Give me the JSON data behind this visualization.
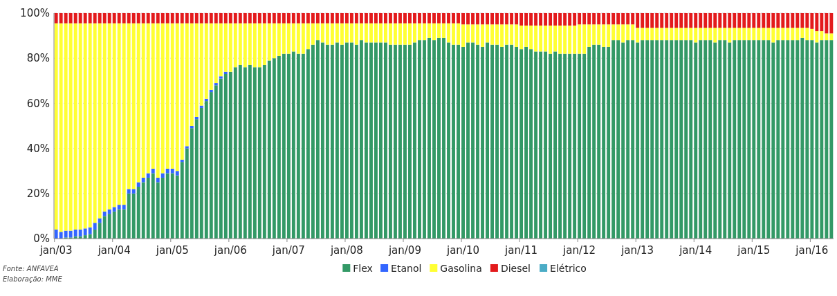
{
  "chart_data": {
    "type": "bar",
    "stacked": true,
    "categories": [
      "jan/03",
      null,
      null,
      null,
      null,
      null,
      null,
      null,
      null,
      null,
      null,
      null,
      "jan/04",
      null,
      null,
      null,
      null,
      null,
      null,
      null,
      null,
      null,
      null,
      null,
      "jan/05",
      null,
      null,
      null,
      null,
      null,
      null,
      null,
      null,
      null,
      null,
      null,
      "jan/06",
      null,
      null,
      null,
      null,
      null,
      null,
      null,
      null,
      null,
      null,
      null,
      "jan/07",
      null,
      null,
      null,
      null,
      null,
      null,
      null,
      null,
      null,
      null,
      null,
      "jan/08",
      null,
      null,
      null,
      null,
      null,
      null,
      null,
      null,
      null,
      null,
      null,
      "jan/09",
      null,
      null,
      null,
      null,
      null,
      null,
      null,
      null,
      null,
      null,
      null,
      "jan/10",
      null,
      null,
      null,
      null,
      null,
      null,
      null,
      null,
      null,
      null,
      null,
      "jan/11",
      null,
      null,
      null,
      null,
      null,
      null,
      null,
      null,
      null,
      null,
      null,
      "jan/12",
      null,
      null,
      null,
      null,
      null,
      null,
      null,
      null,
      null,
      null,
      null,
      "jan/13",
      null,
      null,
      null,
      null,
      null,
      null,
      null,
      null,
      null,
      null,
      null,
      "jan/14",
      null,
      null,
      null,
      null,
      null,
      null,
      null,
      null,
      null,
      null,
      null,
      "jan/15",
      null,
      null,
      null,
      null,
      null,
      null,
      null,
      null,
      null,
      null,
      null,
      "jan/16",
      null,
      null,
      null,
      null
    ],
    "series": [
      {
        "name": "Flex",
        "color": "#339966",
        "values": [
          0,
          0,
          0.5,
          0.5,
          1,
          1,
          1.5,
          2,
          4,
          7,
          10,
          11,
          12,
          13,
          13,
          20,
          20,
          23,
          25,
          27,
          29,
          25,
          27,
          29,
          29,
          28,
          34,
          40,
          49,
          53,
          58,
          61,
          65,
          68,
          71,
          73,
          74,
          76,
          77,
          76,
          77,
          76,
          76,
          77,
          79,
          80,
          81,
          82,
          82,
          83,
          82,
          82,
          84,
          86,
          88,
          87,
          86,
          86,
          87,
          86,
          87,
          87,
          86,
          88,
          87,
          87,
          87,
          87,
          87,
          86,
          86,
          86,
          86,
          86,
          87,
          88,
          88,
          89,
          88,
          89,
          89,
          87,
          86,
          86,
          85,
          87,
          87,
          86,
          85,
          87,
          86,
          86,
          85,
          86,
          86,
          85,
          84,
          85,
          84,
          83,
          83,
          83,
          82,
          83,
          82,
          82,
          82,
          82,
          82,
          82,
          85,
          86,
          86,
          85,
          85,
          88,
          88,
          87,
          88,
          88,
          87,
          88,
          88,
          88,
          88,
          88,
          88,
          88,
          88,
          88,
          88,
          88,
          87,
          88,
          88,
          88,
          87,
          88,
          88,
          87,
          88,
          88,
          88,
          88,
          88,
          88,
          88,
          88,
          87,
          88,
          88,
          88,
          88,
          88,
          89,
          88,
          88,
          87,
          88,
          88,
          88
        ]
      },
      {
        "name": "Etanol",
        "color": "#3366ff",
        "values": [
          4,
          3,
          3,
          3,
          3,
          3,
          3,
          3,
          3,
          2,
          2,
          2,
          2,
          2,
          2,
          2,
          2,
          2,
          2,
          2,
          2,
          2,
          2,
          2,
          2,
          2,
          1,
          1,
          1,
          1,
          1,
          1,
          1,
          1,
          1,
          1,
          0,
          0,
          0,
          0,
          0,
          0,
          0,
          0,
          0,
          0,
          0,
          0,
          0,
          0,
          0,
          0,
          0,
          0,
          0,
          0,
          0,
          0,
          0,
          0,
          0,
          0,
          0,
          0,
          0,
          0,
          0,
          0,
          0,
          0,
          0,
          0,
          0,
          0,
          0,
          0,
          0,
          0,
          0,
          0,
          0,
          0,
          0,
          0,
          0,
          0,
          0,
          0,
          0,
          0,
          0,
          0,
          0,
          0,
          0,
          0,
          0,
          0,
          0,
          0,
          0,
          0,
          0,
          0,
          0,
          0,
          0,
          0,
          0,
          0,
          0,
          0,
          0,
          0,
          0,
          0,
          0,
          0,
          0,
          0,
          0,
          0,
          0,
          0,
          0,
          0,
          0,
          0,
          0,
          0,
          0,
          0,
          0,
          0,
          0,
          0,
          0,
          0,
          0,
          0,
          0,
          0,
          0,
          0,
          0,
          0,
          0,
          0,
          0,
          0,
          0,
          0,
          0,
          0,
          0,
          0,
          0,
          0,
          0,
          0,
          0
        ]
      },
      {
        "name": "Gasolina",
        "color": "#ffff33",
        "values": [
          91.5,
          92.5,
          92,
          92,
          91.5,
          91.5,
          91,
          90.5,
          88.5,
          86.5,
          83.5,
          82.5,
          81.5,
          80.5,
          80.5,
          73.5,
          73.5,
          70.5,
          68.5,
          66.5,
          64.5,
          68.5,
          66.5,
          64.5,
          64.5,
          65.5,
          60.5,
          54.5,
          45.5,
          41.5,
          36.5,
          33.5,
          29.5,
          26.5,
          23.5,
          21.5,
          21.5,
          19.5,
          18.5,
          19.5,
          18.5,
          19.5,
          19.5,
          18.5,
          16.5,
          15.5,
          14.5,
          13.5,
          13.5,
          12.5,
          13.5,
          13.5,
          11.5,
          9.5,
          7.5,
          8.5,
          9.5,
          9.5,
          8.5,
          9.5,
          8.5,
          8.5,
          9.5,
          7.5,
          8.5,
          8.5,
          8.5,
          8.5,
          8.5,
          9.5,
          9.5,
          9.5,
          9.5,
          9.5,
          8.5,
          7.5,
          7.5,
          6.5,
          7.5,
          6.5,
          6.5,
          8.5,
          9.5,
          9.5,
          10,
          8,
          8,
          9,
          10,
          8,
          9,
          9,
          10,
          9,
          9,
          10,
          10.5,
          9.5,
          10.5,
          11.5,
          11.5,
          11.5,
          12.5,
          11.5,
          12.5,
          12.5,
          12.5,
          12.5,
          13,
          13,
          10,
          9,
          9,
          10,
          10,
          7,
          7,
          8,
          7,
          7,
          6.5,
          5.5,
          5.5,
          5.5,
          5.5,
          5.5,
          5.5,
          5.5,
          5.5,
          5.5,
          5.5,
          5.5,
          6.5,
          5.5,
          5.5,
          5.5,
          6.5,
          5.5,
          5.5,
          6.5,
          5.5,
          5.5,
          5.5,
          5.5,
          5.5,
          5.5,
          5.5,
          5.5,
          6.5,
          5.5,
          5.5,
          5.5,
          5.5,
          5.5,
          4.5,
          5.5,
          5,
          5,
          4,
          3,
          3
        ]
      },
      {
        "name": "Diesel",
        "color": "#e31a1c",
        "values": [
          4.5,
          4.5,
          4.5,
          4.5,
          4.5,
          4.5,
          4.5,
          4.5,
          4.5,
          4.5,
          4.5,
          4.5,
          4.5,
          4.5,
          4.5,
          4.5,
          4.5,
          4.5,
          4.5,
          4.5,
          4.5,
          4.5,
          4.5,
          4.5,
          4.5,
          4.5,
          4.5,
          4.5,
          4.5,
          4.5,
          4.5,
          4.5,
          4.5,
          4.5,
          4.5,
          4.5,
          4.5,
          4.5,
          4.5,
          4.5,
          4.5,
          4.5,
          4.5,
          4.5,
          4.5,
          4.5,
          4.5,
          4.5,
          4.5,
          4.5,
          4.5,
          4.5,
          4.5,
          4.5,
          4.5,
          4.5,
          4.5,
          4.5,
          4.5,
          4.5,
          4.5,
          4.5,
          4.5,
          4.5,
          4.5,
          4.5,
          4.5,
          4.5,
          4.5,
          4.5,
          4.5,
          4.5,
          4.5,
          4.5,
          4.5,
          4.5,
          4.5,
          4.5,
          4.5,
          4.5,
          4.5,
          4.5,
          4.5,
          4.5,
          5,
          5,
          5,
          5,
          5,
          5,
          5,
          5,
          5,
          5,
          5,
          5,
          5.5,
          5.5,
          5.5,
          5.5,
          5.5,
          5.5,
          5.5,
          5.5,
          5.5,
          5.5,
          5.5,
          5.5,
          5,
          5,
          5,
          5,
          5,
          5,
          5,
          5,
          5,
          5,
          5,
          5,
          6.5,
          6.5,
          6.5,
          6.5,
          6.5,
          6.5,
          6.5,
          6.5,
          6.5,
          6.5,
          6.5,
          6.5,
          6.5,
          6.5,
          6.5,
          6.5,
          6.5,
          6.5,
          6.5,
          6.5,
          6.5,
          6.5,
          6.5,
          6.5,
          6.5,
          6.5,
          6.5,
          6.5,
          6.5,
          6.5,
          6.5,
          6.5,
          6.5,
          6.5,
          6.5,
          6.5,
          7,
          8,
          8,
          9,
          9
        ]
      },
      {
        "name": "Elétrico",
        "color": "#4bacc6",
        "values": [
          0,
          0,
          0,
          0,
          0,
          0,
          0,
          0,
          0,
          0,
          0,
          0,
          0,
          0,
          0,
          0,
          0,
          0,
          0,
          0,
          0,
          0,
          0,
          0,
          0,
          0,
          0,
          0,
          0,
          0,
          0,
          0,
          0,
          0,
          0,
          0,
          0,
          0,
          0,
          0,
          0,
          0,
          0,
          0,
          0,
          0,
          0,
          0,
          0,
          0,
          0,
          0,
          0,
          0,
          0,
          0,
          0,
          0,
          0,
          0,
          0,
          0,
          0,
          0,
          0,
          0,
          0,
          0,
          0,
          0,
          0,
          0,
          0,
          0,
          0,
          0,
          0,
          0,
          0,
          0,
          0,
          0,
          0,
          0,
          0,
          0,
          0,
          0,
          0,
          0,
          0,
          0,
          0,
          0,
          0,
          0,
          0,
          0,
          0,
          0,
          0,
          0,
          0,
          0,
          0,
          0,
          0,
          0,
          0,
          0,
          0,
          0,
          0,
          0,
          0,
          0,
          0,
          0,
          0,
          0,
          0,
          0,
          0,
          0,
          0,
          0,
          0,
          0,
          0,
          0,
          0,
          0,
          0,
          0,
          0,
          0,
          0,
          0,
          0,
          0,
          0,
          0,
          0,
          0,
          0,
          0,
          0,
          0,
          0,
          0,
          0,
          0,
          0,
          0,
          0,
          0,
          0,
          0,
          0,
          0,
          0
        ]
      }
    ],
    "ylim": [
      0,
      100
    ],
    "yticks": [
      {
        "value": 0,
        "label": "0%"
      },
      {
        "value": 20,
        "label": "20%"
      },
      {
        "value": 40,
        "label": "40%"
      },
      {
        "value": 60,
        "label": "60%"
      },
      {
        "value": 80,
        "label": "80%"
      },
      {
        "value": 100,
        "label": "100%"
      }
    ],
    "grid": "y",
    "legend": "bottom",
    "annotations": [
      "Fonte: ANFAVEA",
      "Elaboração: MME"
    ]
  }
}
